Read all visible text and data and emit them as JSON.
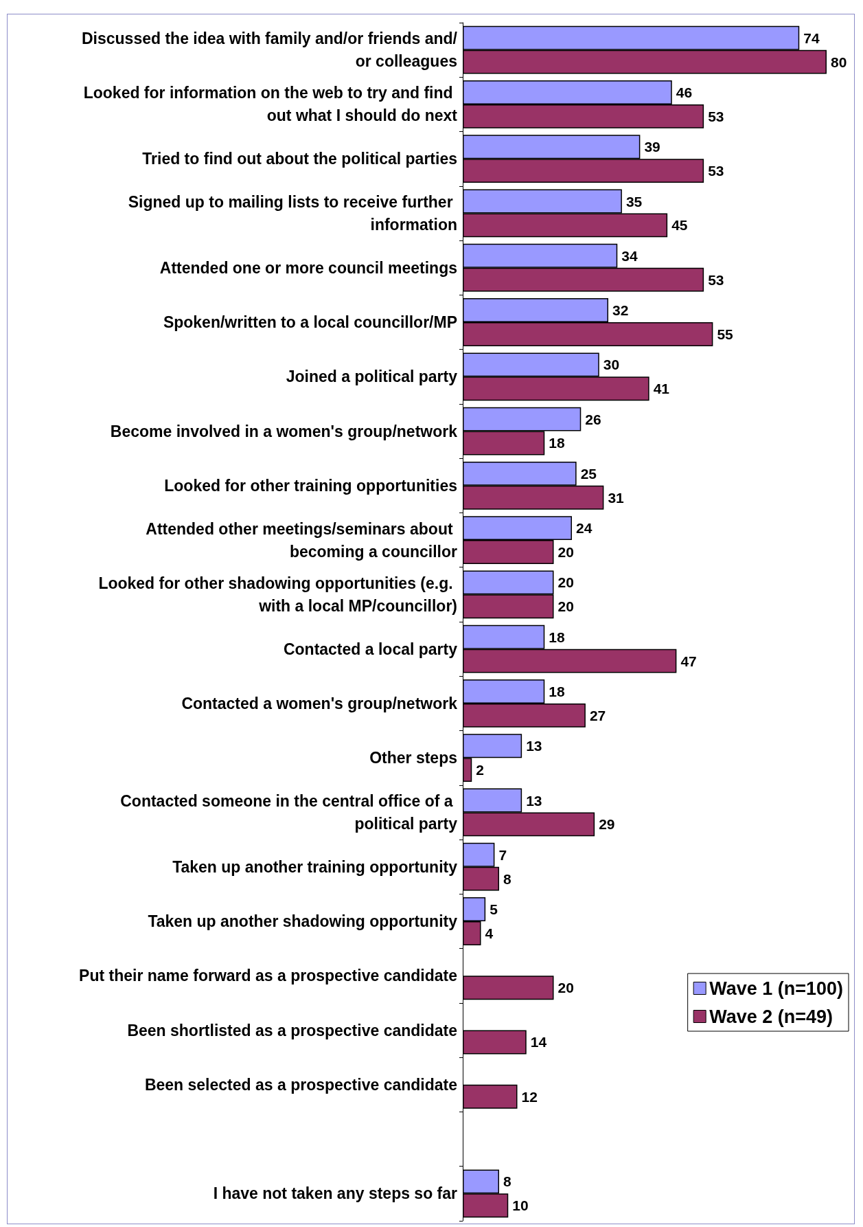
{
  "chart_data": {
    "type": "bar",
    "orientation": "horizontal",
    "data_labels": true,
    "legend": "right",
    "categories": [
      "Discussed the idea with family and/or friends and/or colleagues",
      "Looked for information on the web to try and find out what I should do next",
      "Tried to find out about the political parties",
      "Signed up to mailing lists to receive further information",
      "Attended one or more council meetings",
      "Spoken/written to a local councillor/MP",
      "Joined a political party",
      "Become involved in a women's group/network",
      "Looked for other training opportunities",
      "Attended other meetings/seminars about becoming a councillor",
      "Looked for other shadowing opportunities (e.g. with a local MP/councillor)",
      "Contacted a local party",
      "Contacted a women's group/network",
      "Other steps",
      "Contacted someone in the central office of a political party",
      "Taken up another training opportunity",
      "Taken up another shadowing opportunity",
      "Put their name forward as a prospective candidate",
      "Been shortlisted as a prospective candidate",
      "Been selected as a prospective candidate",
      null,
      "I have not taken any steps so far"
    ],
    "series": [
      {
        "name": "Wave 1 (n=100)",
        "color": "#9999ff",
        "values": [
          74,
          46,
          39,
          35,
          34,
          32,
          30,
          26,
          25,
          24,
          20,
          18,
          18,
          13,
          13,
          7,
          5,
          null,
          null,
          null,
          null,
          8
        ]
      },
      {
        "name": "Wave 2 (n=49)",
        "color": "#993366",
        "values": [
          80,
          53,
          53,
          45,
          53,
          55,
          41,
          18,
          31,
          20,
          20,
          47,
          27,
          2,
          29,
          8,
          4,
          20,
          14,
          12,
          null,
          10
        ]
      }
    ]
  }
}
